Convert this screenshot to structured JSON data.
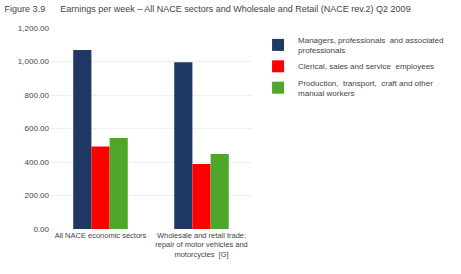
{
  "chart_data": {
    "type": "bar",
    "title": "Figure 3.9      Earnings per week – All NACE sectors and Wholesale and Retail (NACE rev.2) Q2 2009",
    "categories": [
      "All NACE economic sectors",
      "Wholesale and retail trade;\nrepair of motor vehicles and\nmotorcycles  [G]"
    ],
    "series": [
      {
        "name": "Managers, professionals  and associated\nprofessionals",
        "color": "#1F3864",
        "values": [
          1068,
          995
        ]
      },
      {
        "name": "Clerical, sales and service  employees",
        "color": "#FF0000",
        "values": [
          493,
          388
        ]
      },
      {
        "name": "Production,  transport,  craft and other\nmanual workers",
        "color": "#4EA72A",
        "values": [
          543,
          448
        ]
      }
    ],
    "ylim": [
      0,
      1200
    ],
    "yticks": [
      {
        "value": 0,
        "label": "0.00"
      },
      {
        "value": 200,
        "label": "200.00"
      },
      {
        "value": 400,
        "label": "400.00"
      },
      {
        "value": 600,
        "label": "600.00"
      },
      {
        "value": 800,
        "label": "800.00"
      },
      {
        "value": 1000,
        "label": "1,000.00"
      },
      {
        "value": 1200,
        "label": "1,200.00"
      }
    ],
    "grid": true,
    "legend": "right"
  }
}
